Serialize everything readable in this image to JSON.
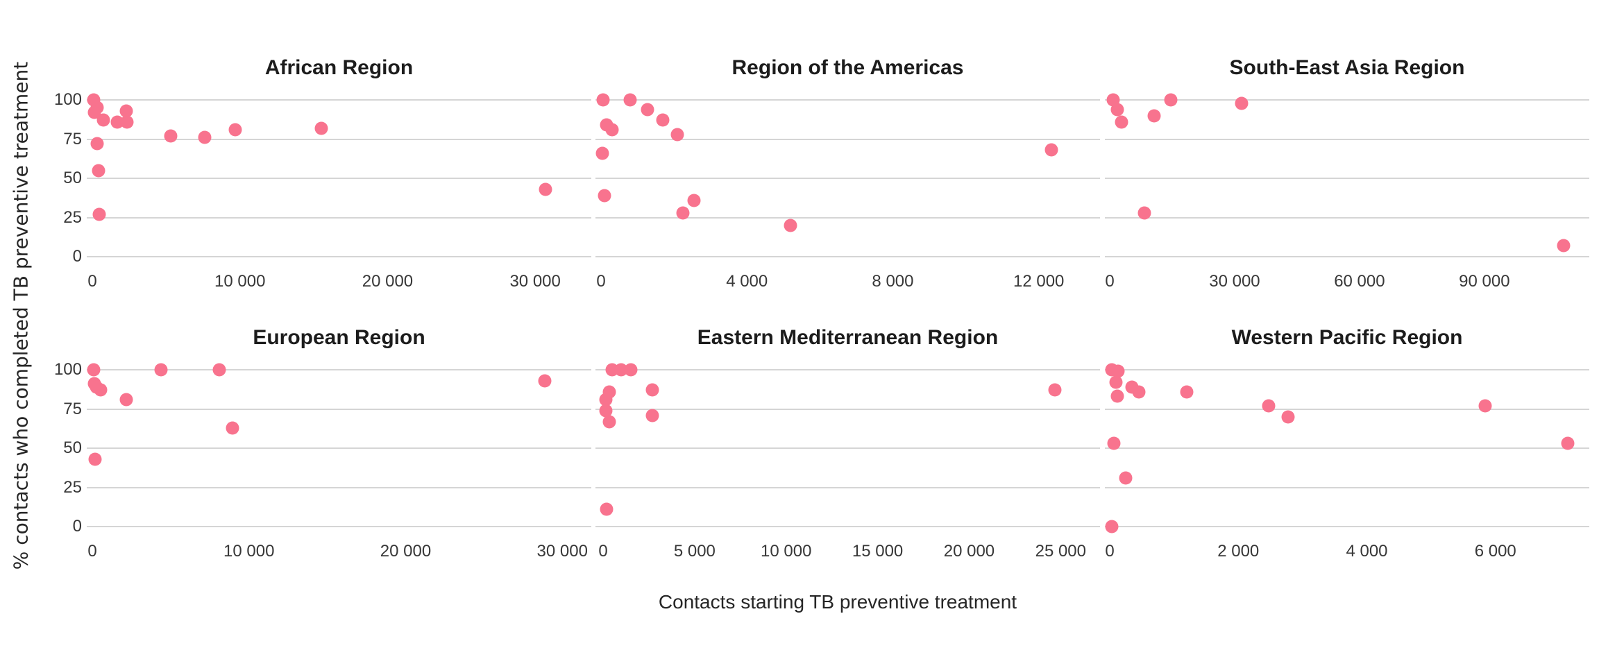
{
  "figure": {
    "y_axis_title": "% contacts who completed TB preventive treatment",
    "x_axis_title": "Contacts starting TB preventive treatment",
    "dot_color": "#f8738e",
    "gridline_color": "#d5d5d5",
    "tick_text_color": "#383838",
    "title_text_color": "#1c1c1c",
    "background_color": "#ffffff"
  },
  "chart_data": [
    {
      "type": "scatter",
      "title": "African Region",
      "xlabel": "Contacts starting TB preventive treatment",
      "ylabel": "% contacts who completed TB preventive treatment",
      "ylim": [
        0,
        100
      ],
      "y_ticks": [
        0,
        25,
        50,
        75,
        100
      ],
      "x_max": 33800,
      "x_ticks": [
        {
          "value": 0,
          "label": "0"
        },
        {
          "value": 10000,
          "label": "10 000"
        },
        {
          "value": 20000,
          "label": "20 000"
        },
        {
          "value": 30000,
          "label": "30 000"
        }
      ],
      "points": [
        [
          100,
          100
        ],
        [
          350,
          95
        ],
        [
          150,
          92
        ],
        [
          750,
          87
        ],
        [
          1700,
          86
        ],
        [
          2300,
          93
        ],
        [
          2350,
          86
        ],
        [
          350,
          72
        ],
        [
          400,
          55
        ],
        [
          450,
          27
        ],
        [
          5300,
          77
        ],
        [
          7600,
          76
        ],
        [
          9700,
          81
        ],
        [
          15500,
          82
        ],
        [
          30700,
          43
        ]
      ]
    },
    {
      "type": "scatter",
      "title": "Region of the Americas",
      "xlabel": "Contacts starting TB preventive treatment",
      "ylabel": "% contacts who completed TB preventive treatment",
      "ylim": [
        0,
        100
      ],
      "y_ticks": [
        0,
        25,
        50,
        75,
        100
      ],
      "x_max": 13680,
      "x_ticks": [
        {
          "value": 0,
          "label": "0"
        },
        {
          "value": 4000,
          "label": "4 000"
        },
        {
          "value": 8000,
          "label": "8 000"
        },
        {
          "value": 12000,
          "label": "12 000"
        }
      ],
      "points": [
        [
          50,
          100
        ],
        [
          800,
          100
        ],
        [
          1270,
          94
        ],
        [
          1700,
          87
        ],
        [
          150,
          84
        ],
        [
          300,
          81
        ],
        [
          2100,
          78
        ],
        [
          30,
          66
        ],
        [
          12350,
          68
        ],
        [
          100,
          39
        ],
        [
          2550,
          36
        ],
        [
          2250,
          28
        ],
        [
          5200,
          20
        ]
      ]
    },
    {
      "type": "scatter",
      "title": "South-East Asia Region",
      "xlabel": "Contacts starting TB preventive treatment",
      "ylabel": "% contacts who completed TB preventive treatment",
      "ylim": [
        0,
        100
      ],
      "y_ticks": [
        0,
        25,
        50,
        75,
        100
      ],
      "x_max": 115200,
      "x_ticks": [
        {
          "value": 0,
          "label": "0"
        },
        {
          "value": 30000,
          "label": "30 000"
        },
        {
          "value": 60000,
          "label": "60 000"
        },
        {
          "value": 90000,
          "label": "90 000"
        }
      ],
      "points": [
        [
          800,
          100
        ],
        [
          1800,
          94
        ],
        [
          2900,
          86
        ],
        [
          10700,
          90
        ],
        [
          14700,
          100
        ],
        [
          31700,
          98
        ],
        [
          8400,
          28
        ],
        [
          109000,
          7
        ]
      ]
    },
    {
      "type": "scatter",
      "title": "European Region",
      "xlabel": "Contacts starting TB preventive treatment",
      "ylabel": "% contacts who completed TB preventive treatment",
      "ylim": [
        0,
        100
      ],
      "y_ticks": [
        0,
        25,
        50,
        75,
        100
      ],
      "x_max": 31850,
      "x_ticks": [
        {
          "value": 0,
          "label": "0"
        },
        {
          "value": 10000,
          "label": "10 000"
        },
        {
          "value": 20000,
          "label": "20 000"
        },
        {
          "value": 30000,
          "label": "30 000"
        }
      ],
      "points": [
        [
          100,
          100
        ],
        [
          150,
          91
        ],
        [
          250,
          89
        ],
        [
          550,
          87
        ],
        [
          2150,
          81
        ],
        [
          4400,
          100
        ],
        [
          8100,
          100
        ],
        [
          8950,
          63
        ],
        [
          170,
          43
        ],
        [
          28900,
          93
        ]
      ]
    },
    {
      "type": "scatter",
      "title": "Eastern Mediterranean Region",
      "xlabel": "Contacts starting TB preventive treatment",
      "ylabel": "% contacts who completed TB preventive treatment",
      "ylim": [
        0,
        100
      ],
      "y_ticks": [
        0,
        25,
        50,
        75,
        100
      ],
      "x_max": 27150,
      "x_ticks": [
        {
          "value": 0,
          "label": "0"
        },
        {
          "value": 5000,
          "label": "5 000"
        },
        {
          "value": 10000,
          "label": "10 000"
        },
        {
          "value": 15000,
          "label": "15 000"
        },
        {
          "value": 20000,
          "label": "20 000"
        },
        {
          "value": 25000,
          "label": "25 000"
        }
      ],
      "points": [
        [
          500,
          100
        ],
        [
          1000,
          100
        ],
        [
          1500,
          100
        ],
        [
          2700,
          87
        ],
        [
          350,
          86
        ],
        [
          150,
          81
        ],
        [
          150,
          74
        ],
        [
          350,
          67
        ],
        [
          2700,
          71
        ],
        [
          24700,
          87
        ],
        [
          180,
          11
        ]
      ]
    },
    {
      "type": "scatter",
      "title": "Western Pacific Region",
      "xlabel": "Contacts starting TB preventive treatment",
      "ylabel": "% contacts who completed TB preventive treatment",
      "ylim": [
        0,
        100
      ],
      "y_ticks": [
        0,
        25,
        50,
        75,
        100
      ],
      "x_max": 7460,
      "x_ticks": [
        {
          "value": 0,
          "label": "0"
        },
        {
          "value": 2000,
          "label": "2 000"
        },
        {
          "value": 4000,
          "label": "4 000"
        },
        {
          "value": 6000,
          "label": "6 000"
        }
      ],
      "points": [
        [
          30,
          100
        ],
        [
          130,
          99
        ],
        [
          100,
          92
        ],
        [
          120,
          83
        ],
        [
          350,
          89
        ],
        [
          450,
          86
        ],
        [
          1200,
          86
        ],
        [
          2470,
          77
        ],
        [
          2770,
          70
        ],
        [
          5840,
          77
        ],
        [
          60,
          53
        ],
        [
          250,
          31
        ],
        [
          7120,
          53
        ],
        [
          35,
          0
        ]
      ]
    }
  ]
}
